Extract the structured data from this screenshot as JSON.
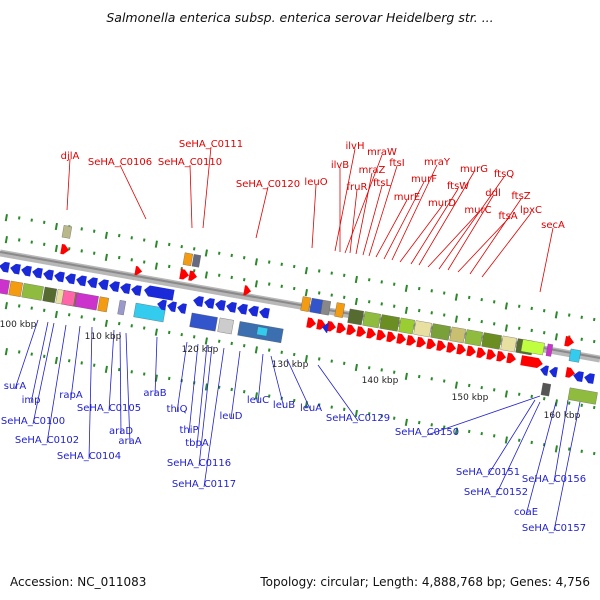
{
  "title": "Salmonella enterica subsp. enterica serovar Heidelberg str. ...",
  "footer": {
    "accession": "Accession: NC_011083",
    "summary": "Topology: circular; Length: 4,888,768 bp; Genes: 4,756"
  },
  "colors": {
    "forward_label": "#e00000",
    "reverse_label": "#1f1fd0",
    "backbone": "#999999",
    "tick": "#2a8a2a"
  },
  "scale_labels": [
    "100 kbp",
    "110 kbp",
    "120 kbp",
    "130 kbp",
    "140 kbp",
    "150 kbp",
    "160 kbp"
  ],
  "top_labels": [
    "djlA",
    "SeHA_C0106",
    "SeHA_C0111",
    "SeHA_C0110",
    "SeHA_C0120",
    "leuO",
    "ilvH",
    "ilvB",
    "mraW",
    "fruR",
    "mraZ",
    "ftsL",
    "ftsI",
    "murE",
    "murF",
    "mraY",
    "murD",
    "ftsW",
    "murG",
    "murC",
    "ftsQ",
    "ddl",
    "ftsA",
    "ftsZ",
    "lpxC",
    "secA"
  ],
  "bottom_labels": [
    "surA",
    "imp",
    "SeHA_C0100",
    "SeHA_C0102",
    "rapA",
    "SeHA_C0104",
    "SeHA_C0105",
    "araD",
    "araA",
    "araB",
    "thiQ",
    "thiP",
    "tbpA",
    "SeHA_C0116",
    "SeHA_C0117",
    "leuD",
    "leuC",
    "leuB",
    "leuA",
    "SeHA_C0129",
    "SeHA_C0150",
    "SeHA_C0151",
    "SeHA_C0152",
    "coaE",
    "SeHA_C0156",
    "SeHA_C0157"
  ]
}
